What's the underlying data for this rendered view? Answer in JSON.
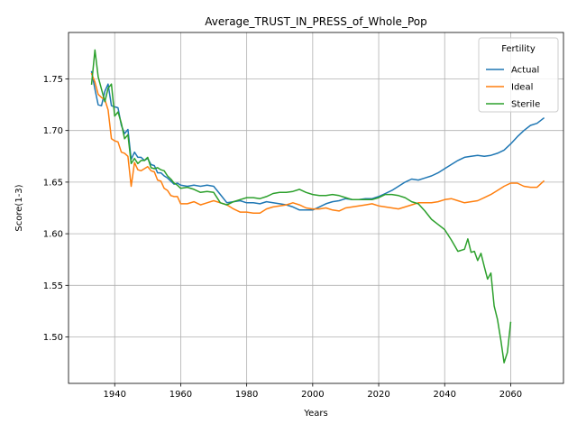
{
  "chart_data": {
    "type": "line",
    "title": "Average_TRUST_IN_PRESS_of_Whole_Pop",
    "xlabel": "Years",
    "ylabel": "Score(1-3)",
    "xlim": [
      1926,
      2076
    ],
    "ylim": [
      1.455,
      1.795
    ],
    "xticks": [
      1940,
      1960,
      1980,
      2000,
      2020,
      2040,
      2060
    ],
    "yticks": [
      1.5,
      1.55,
      1.6,
      1.65,
      1.7,
      1.75
    ],
    "xtick_labels": [
      "1940",
      "1960",
      "1980",
      "2000",
      "2020",
      "2040",
      "2060"
    ],
    "ytick_labels": [
      "1.50",
      "1.55",
      "1.60",
      "1.65",
      "1.70",
      "1.75"
    ],
    "grid": true,
    "legend": {
      "title": "Fertility",
      "position": "top-right"
    },
    "series": [
      {
        "name": "Actual",
        "color": "#1f77b4",
        "x": [
          1933,
          1934,
          1935,
          1936,
          1937,
          1938,
          1939,
          1940,
          1941,
          1942,
          1943,
          1944,
          1945,
          1946,
          1947,
          1948,
          1949,
          1950,
          1951,
          1952,
          1953,
          1954,
          1955,
          1956,
          1957,
          1958,
          1959,
          1960,
          1962,
          1964,
          1966,
          1968,
          1970,
          1972,
          1974,
          1976,
          1978,
          1980,
          1982,
          1984,
          1986,
          1988,
          1990,
          1992,
          1994,
          1996,
          1998,
          2000,
          2002,
          2004,
          2006,
          2008,
          2010,
          2012,
          2014,
          2016,
          2018,
          2020,
          2022,
          2024,
          2026,
          2028,
          2030,
          2032,
          2034,
          2036,
          2038,
          2040,
          2042,
          2044,
          2046,
          2048,
          2050,
          2052,
          2054,
          2056,
          2058,
          2060,
          2062,
          2064,
          2066,
          2068,
          2070
        ],
        "y": [
          1.757,
          1.74,
          1.725,
          1.724,
          1.738,
          1.745,
          1.724,
          1.723,
          1.722,
          1.705,
          1.697,
          1.701,
          1.672,
          1.679,
          1.674,
          1.674,
          1.671,
          1.673,
          1.667,
          1.666,
          1.659,
          1.659,
          1.656,
          1.654,
          1.651,
          1.648,
          1.649,
          1.647,
          1.646,
          1.647,
          1.646,
          1.647,
          1.646,
          1.638,
          1.63,
          1.631,
          1.632,
          1.63,
          1.63,
          1.629,
          1.631,
          1.63,
          1.629,
          1.628,
          1.626,
          1.623,
          1.623,
          1.623,
          1.626,
          1.629,
          1.631,
          1.632,
          1.634,
          1.633,
          1.633,
          1.634,
          1.634,
          1.636,
          1.639,
          1.642,
          1.646,
          1.65,
          1.653,
          1.652,
          1.654,
          1.656,
          1.659,
          1.663,
          1.667,
          1.671,
          1.674,
          1.675,
          1.676,
          1.675,
          1.676,
          1.678,
          1.681,
          1.687,
          1.694,
          1.7,
          1.705,
          1.707,
          1.712
        ]
      },
      {
        "name": "Ideal",
        "color": "#ff7f0e",
        "x": [
          1933,
          1934,
          1935,
          1936,
          1937,
          1938,
          1939,
          1940,
          1941,
          1942,
          1943,
          1944,
          1945,
          1946,
          1947,
          1948,
          1949,
          1950,
          1951,
          1952,
          1953,
          1954,
          1955,
          1956,
          1957,
          1958,
          1959,
          1960,
          1962,
          1964,
          1966,
          1968,
          1970,
          1972,
          1974,
          1976,
          1978,
          1980,
          1982,
          1984,
          1986,
          1988,
          1990,
          1992,
          1994,
          1996,
          1998,
          2000,
          2002,
          2004,
          2006,
          2008,
          2010,
          2012,
          2014,
          2016,
          2018,
          2020,
          2022,
          2024,
          2026,
          2028,
          2030,
          2032,
          2034,
          2036,
          2038,
          2040,
          2042,
          2044,
          2046,
          2048,
          2050,
          2052,
          2054,
          2056,
          2058,
          2060,
          2062,
          2064,
          2066,
          2068,
          2070
        ],
        "y": [
          1.755,
          1.747,
          1.735,
          1.732,
          1.73,
          1.72,
          1.692,
          1.69,
          1.689,
          1.679,
          1.678,
          1.675,
          1.646,
          1.669,
          1.662,
          1.661,
          1.663,
          1.665,
          1.661,
          1.66,
          1.652,
          1.651,
          1.644,
          1.642,
          1.637,
          1.636,
          1.636,
          1.629,
          1.629,
          1.631,
          1.628,
          1.63,
          1.632,
          1.63,
          1.628,
          1.624,
          1.621,
          1.621,
          1.62,
          1.62,
          1.624,
          1.626,
          1.627,
          1.628,
          1.63,
          1.628,
          1.625,
          1.624,
          1.624,
          1.625,
          1.623,
          1.622,
          1.625,
          1.626,
          1.627,
          1.628,
          1.629,
          1.627,
          1.626,
          1.625,
          1.624,
          1.626,
          1.628,
          1.63,
          1.63,
          1.63,
          1.631,
          1.633,
          1.634,
          1.632,
          1.63,
          1.631,
          1.632,
          1.635,
          1.638,
          1.642,
          1.646,
          1.649,
          1.649,
          1.646,
          1.645,
          1.645,
          1.651
        ]
      },
      {
        "name": "Sterile",
        "color": "#2ca02c",
        "x": [
          1933,
          1934,
          1935,
          1936,
          1937,
          1938,
          1939,
          1940,
          1941,
          1942,
          1943,
          1944,
          1945,
          1946,
          1947,
          1948,
          1949,
          1950,
          1951,
          1952,
          1953,
          1954,
          1955,
          1956,
          1957,
          1958,
          1959,
          1960,
          1962,
          1964,
          1966,
          1968,
          1970,
          1972,
          1974,
          1976,
          1978,
          1980,
          1982,
          1984,
          1986,
          1988,
          1990,
          1992,
          1994,
          1996,
          1998,
          2000,
          2002,
          2004,
          2006,
          2008,
          2010,
          2012,
          2014,
          2016,
          2018,
          2020,
          2022,
          2024,
          2026,
          2028,
          2030,
          2032,
          2034,
          2036,
          2038,
          2040,
          2042,
          2044,
          2046,
          2047,
          2048,
          2049,
          2050,
          2051,
          2052,
          2053,
          2054,
          2055,
          2056,
          2057,
          2058,
          2059,
          2060
        ],
        "y": [
          1.745,
          1.778,
          1.752,
          1.74,
          1.728,
          1.741,
          1.745,
          1.714,
          1.718,
          1.707,
          1.692,
          1.696,
          1.668,
          1.673,
          1.668,
          1.671,
          1.671,
          1.674,
          1.664,
          1.663,
          1.664,
          1.662,
          1.661,
          1.656,
          1.653,
          1.649,
          1.647,
          1.644,
          1.645,
          1.643,
          1.64,
          1.641,
          1.64,
          1.63,
          1.628,
          1.631,
          1.633,
          1.635,
          1.635,
          1.634,
          1.636,
          1.639,
          1.64,
          1.64,
          1.641,
          1.643,
          1.64,
          1.638,
          1.637,
          1.637,
          1.638,
          1.637,
          1.635,
          1.633,
          1.633,
          1.633,
          1.633,
          1.635,
          1.638,
          1.638,
          1.637,
          1.635,
          1.631,
          1.629,
          1.622,
          1.614,
          1.609,
          1.604,
          1.594,
          1.583,
          1.585,
          1.595,
          1.582,
          1.583,
          1.574,
          1.581,
          1.568,
          1.556,
          1.562,
          1.53,
          1.517,
          1.497,
          1.475,
          1.485,
          1.514
        ]
      }
    ]
  }
}
